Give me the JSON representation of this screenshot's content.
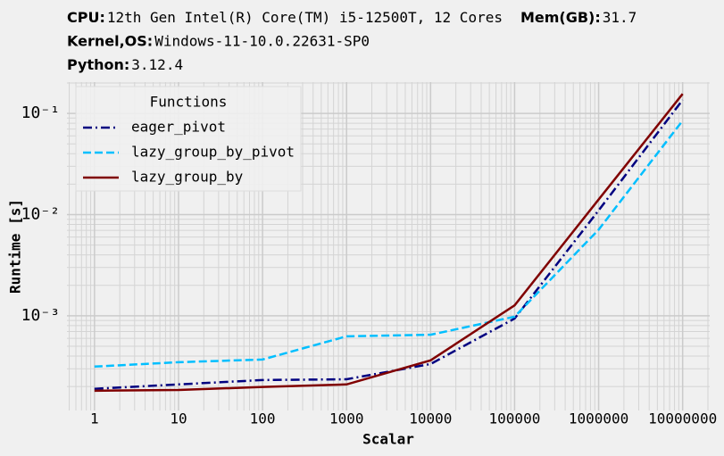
{
  "chart_data": {
    "type": "line",
    "title_lines": [
      [
        {
          "label": "CPU:",
          "value": "12th Gen Intel(R) Core(TM) i5-12500T, 12 Cores"
        },
        {
          "label": "Mem(GB):",
          "value": "31.7"
        }
      ],
      [
        {
          "label": "Kernel,OS:",
          "value": "Windows-11-10.0.22631-SP0"
        }
      ],
      [
        {
          "label": "Python:",
          "value": "3.12.4"
        }
      ]
    ],
    "x_label": "Scalar",
    "y_label": "Runtime [s]",
    "x": [
      1,
      10,
      100,
      1000,
      10000,
      100000,
      1000000,
      10000000
    ],
    "series": [
      {
        "name": "eager_pivot",
        "color": "#000080",
        "dash": "dashdot",
        "values": [
          0.00019,
          0.00021,
          0.000232,
          0.000236,
          0.000334,
          0.00094,
          0.011,
          0.136
        ]
      },
      {
        "name": "lazy_group_by_pivot",
        "color": "#00bfff",
        "dash": "dashed",
        "values": [
          0.000315,
          0.000348,
          0.00037,
          0.000627,
          0.00065,
          0.00098,
          0.0071,
          0.085
        ]
      },
      {
        "name": "lazy_group_by",
        "color": "#800000",
        "dash": "solid",
        "values": [
          0.000182,
          0.000185,
          0.000198,
          0.00021,
          0.000363,
          0.00127,
          0.0141,
          0.156
        ]
      }
    ],
    "legend_title": "Functions",
    "legend_position": "upper left",
    "xscale": "log",
    "yscale": "log",
    "grid": true,
    "minor_grid": true,
    "xlim": [
      0.47,
      21000000
    ],
    "ylim": [
      0.000116,
      0.204
    ],
    "xticks": [
      1,
      10,
      100,
      1000,
      10000,
      100000,
      1000000,
      10000000
    ],
    "yticks": [
      {
        "value": 0.001,
        "label": "10⁻³"
      },
      {
        "value": 0.01,
        "label": "10⁻²"
      },
      {
        "value": 0.1,
        "label": "10⁻¹"
      }
    ]
  }
}
